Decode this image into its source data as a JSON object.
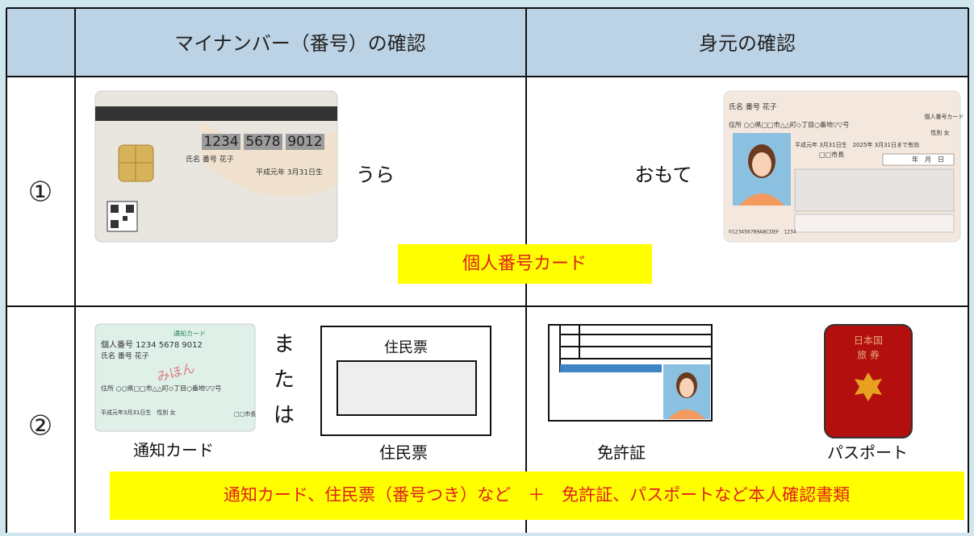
{
  "header": {
    "col1": "マイナンバー（番号）の確認",
    "col2": "身元の確認"
  },
  "rows": [
    {
      "number": "①",
      "back_label": "うら",
      "front_label": "おもて",
      "caption": "個人番号カード",
      "card_back": {
        "number_parts": [
          "1234",
          "5678",
          "9012"
        ],
        "name": "氏名 番号 花子",
        "birth": "平成元年 3月31日生"
      },
      "card_front": {
        "name": "氏名 番号 花子",
        "address": "住所 ○○県□□市△△町◇丁目○番地▽▽号",
        "card_title": "個人番号カード",
        "sex": "性別 女",
        "validity": "平成元年 3月31日生　2025年 3月31日まで有効",
        "issuer": "□□市長",
        "date": "年　月　日",
        "serial": "0123456789ABCDEF　1234"
      }
    },
    {
      "number": "②",
      "notification_card": {
        "title": "通知カード",
        "number": "個人番号 1234 5678 9012",
        "name": "氏名 番号 花子",
        "sample": "みほん",
        "address": "住所 ○○県□□市△△町◇丁目○番地▽▽号",
        "birth": "平成元年3月31日生　性別 女",
        "issuer": "□□市長"
      },
      "or_text": [
        "ま",
        "た",
        "は"
      ],
      "resident_doc_title": "住民票",
      "passport_text": [
        "日本国",
        "旅 券"
      ],
      "labels": [
        "通知カード",
        "住民票",
        "免許証",
        "パスポート"
      ],
      "caption": "通知カード、住民票（番号つき）など　＋　免許証、パスポートなど本人確認書類"
    }
  ]
}
